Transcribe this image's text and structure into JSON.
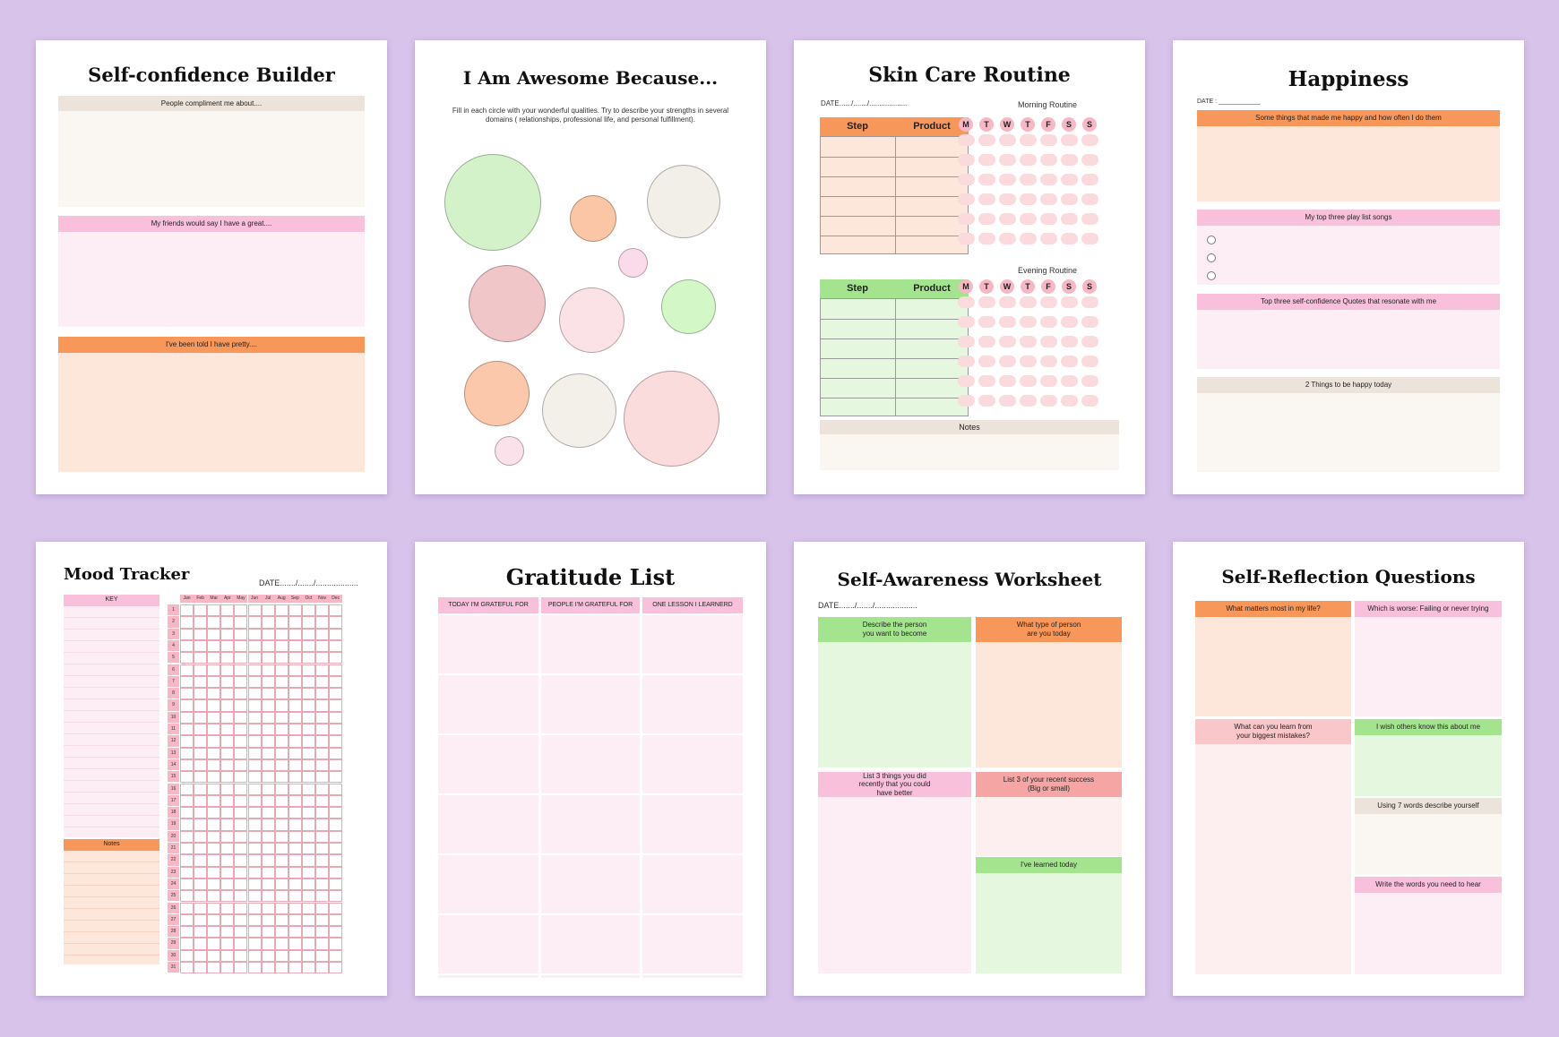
{
  "colors": {
    "background": "#d8c3ea",
    "cream": "#faf6f1",
    "beige_header": "#ece4da",
    "pink_header": "#f9c0dc",
    "pink_light": "#fdeef5",
    "orange_header": "#f7985a",
    "orange_light": "#fde7da",
    "green_header": "#a5e48f",
    "green_light": "#e6f7e0"
  },
  "pages": {
    "confidence": {
      "title": "Self-confidence Builder",
      "sections": [
        {
          "label": "People compliment me about...."
        },
        {
          "label": "My friends would say I have a great...."
        },
        {
          "label": "I've been told I have pretty...."
        }
      ]
    },
    "awesome": {
      "title": "I Am Awesome Because...",
      "instructions": "Fill in each circle with your wonderful qualities. Try to describe your strengths in several domains ( relationships, professional life, and personal fulfillment)."
    },
    "skincare": {
      "title": "Skin Care Routine",
      "date_label": "DATE....../......./...................",
      "morning_label": "Morning Routine",
      "evening_label": "Evening Routine",
      "col_step": "Step",
      "col_product": "Product",
      "days": [
        "M",
        "T",
        "W",
        "T",
        "F",
        "S",
        "S"
      ],
      "notes_label": "Notes"
    },
    "happiness": {
      "title": "Happiness",
      "date_label": "DATE : ____________",
      "sections": [
        {
          "label": "Some things that made me happy and how often I do them"
        },
        {
          "label": "My top three play list songs"
        },
        {
          "label": "Top three self-confidence Quotes that resonate with me"
        },
        {
          "label": "2 Things to be happy today"
        }
      ]
    },
    "mood": {
      "title": "Mood Tracker",
      "date_label": "DATE......./......./...................",
      "key_label": "KEY",
      "notes_label": "Notes",
      "months": [
        "Jan",
        "Feb",
        "Mar",
        "Apr",
        "May",
        "Jun",
        "Jul",
        "Aug",
        "Sep",
        "Oct",
        "Nov",
        "Dec"
      ],
      "days": [
        "1",
        "2",
        "3",
        "4",
        "5",
        "6",
        "7",
        "8",
        "9",
        "10",
        "11",
        "12",
        "13",
        "14",
        "15",
        "16",
        "17",
        "18",
        "19",
        "20",
        "21",
        "22",
        "23",
        "24",
        "25",
        "26",
        "27",
        "28",
        "29",
        "30",
        "31"
      ]
    },
    "gratitude": {
      "title": "Gratitude List",
      "columns": [
        "TODAY I'M GRATEFUL FOR",
        "PEOPLE I'M GRATEFUL FOR",
        "ONE LESSON I LEARNERD"
      ]
    },
    "awareness": {
      "title": "Self-Awareness Worksheet",
      "date_label": "DATE......./......./...................",
      "sections": [
        {
          "label": "Describe the person you want to become"
        },
        {
          "label": "What type of person are you today"
        },
        {
          "label": "List 3 things you did recently that you could have better"
        },
        {
          "label": "List 3 of your recent success (Big or small)"
        },
        {
          "label": "I've learned today"
        }
      ]
    },
    "reflection": {
      "title": "Self-Reflection Questions",
      "sections": [
        {
          "label": "What matters most in my life?"
        },
        {
          "label": "Which is worse: Failing or never trying"
        },
        {
          "label": "What can you learn from your biggest mistakes?"
        },
        {
          "label": "I wish others know this about me"
        },
        {
          "label": "Using 7 words describe yourself"
        },
        {
          "label": "Write the words you need to hear"
        }
      ]
    }
  }
}
